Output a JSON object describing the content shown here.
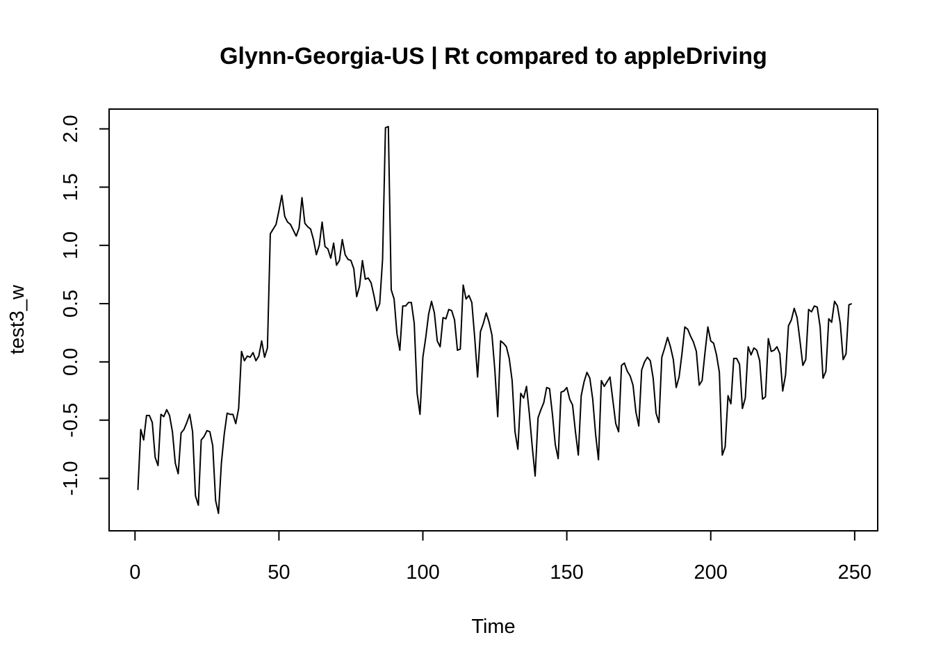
{
  "chart_data": {
    "type": "line",
    "title": "Glynn-Georgia-US | Rt compared to appleDriving",
    "xlabel": "Time",
    "ylabel": "test3_w",
    "xlim": [
      -9,
      258
    ],
    "ylim": [
      -1.45,
      2.17
    ],
    "xticks": [
      0,
      50,
      100,
      150,
      200,
      250
    ],
    "xtick_labels": [
      "0",
      "50",
      "100",
      "150",
      "200",
      "250"
    ],
    "yticks": [
      -1.0,
      -0.5,
      0.0,
      0.5,
      1.0,
      1.5,
      2.0
    ],
    "ytick_labels": [
      "-1.0",
      "-0.5",
      "0.0",
      "0.5",
      "1.0",
      "1.5",
      "2.0"
    ],
    "grid": false,
    "legend": "none",
    "line_color": "#000000",
    "series": [
      {
        "x_start": 1,
        "x_step": 1,
        "values": [
          -1.1,
          -0.58,
          -0.67,
          -0.46,
          -0.46,
          -0.52,
          -0.82,
          -0.89,
          -0.45,
          -0.47,
          -0.41,
          -0.46,
          -0.6,
          -0.87,
          -0.96,
          -0.61,
          -0.58,
          -0.52,
          -0.45,
          -0.6,
          -1.15,
          -1.23,
          -0.67,
          -0.64,
          -0.59,
          -0.6,
          -0.72,
          -1.19,
          -1.3,
          -0.87,
          -0.62,
          -0.44,
          -0.45,
          -0.45,
          -0.53,
          -0.4,
          0.09,
          0.01,
          0.05,
          0.04,
          0.08,
          0.01,
          0.05,
          0.18,
          0.04,
          0.12,
          1.1,
          1.14,
          1.18,
          1.3,
          1.43,
          1.25,
          1.2,
          1.18,
          1.13,
          1.08,
          1.15,
          1.41,
          1.19,
          1.16,
          1.14,
          1.05,
          0.92,
          1.0,
          1.2,
          0.99,
          0.97,
          0.89,
          1.02,
          0.83,
          0.87,
          1.05,
          0.92,
          0.88,
          0.87,
          0.8,
          0.56,
          0.65,
          0.87,
          0.71,
          0.72,
          0.68,
          0.57,
          0.44,
          0.5,
          0.88,
          2.01,
          2.02,
          0.62,
          0.54,
          0.24,
          0.1,
          0.48,
          0.48,
          0.51,
          0.51,
          0.33,
          -0.27,
          -0.45,
          0.04,
          0.21,
          0.41,
          0.52,
          0.42,
          0.18,
          0.13,
          0.38,
          0.37,
          0.45,
          0.44,
          0.36,
          0.1,
          0.11,
          0.66,
          0.54,
          0.57,
          0.51,
          0.21,
          -0.13,
          0.26,
          0.33,
          0.42,
          0.34,
          0.23,
          -0.07,
          -0.47,
          0.18,
          0.16,
          0.13,
          0.03,
          -0.16,
          -0.6,
          -0.75,
          -0.27,
          -0.31,
          -0.21,
          -0.45,
          -0.73,
          -0.98,
          -0.48,
          -0.41,
          -0.35,
          -0.22,
          -0.23,
          -0.45,
          -0.71,
          -0.83,
          -0.26,
          -0.25,
          -0.22,
          -0.32,
          -0.37,
          -0.6,
          -0.8,
          -0.29,
          -0.17,
          -0.09,
          -0.14,
          -0.32,
          -0.62,
          -0.84,
          -0.16,
          -0.21,
          -0.17,
          -0.13,
          -0.33,
          -0.53,
          -0.6,
          -0.03,
          -0.01,
          -0.08,
          -0.12,
          -0.2,
          -0.43,
          -0.55,
          -0.07,
          0.0,
          0.04,
          0.01,
          -0.14,
          -0.44,
          -0.52,
          0.04,
          0.12,
          0.21,
          0.13,
          0.02,
          -0.22,
          -0.13,
          0.07,
          0.3,
          0.28,
          0.22,
          0.17,
          0.09,
          -0.2,
          -0.16,
          0.08,
          0.3,
          0.18,
          0.16,
          0.06,
          -0.09,
          -0.8,
          -0.73,
          -0.29,
          -0.36,
          0.03,
          0.03,
          -0.02,
          -0.4,
          -0.31,
          0.13,
          0.06,
          0.12,
          0.1,
          0.01,
          -0.32,
          -0.3,
          0.2,
          0.09,
          0.1,
          0.13,
          0.07,
          -0.25,
          -0.11,
          0.31,
          0.36,
          0.46,
          0.38,
          0.18,
          -0.03,
          0.02,
          0.45,
          0.43,
          0.48,
          0.47,
          0.3,
          -0.14,
          -0.08,
          0.37,
          0.34,
          0.52,
          0.48,
          0.33,
          0.02,
          0.07,
          0.49,
          0.5
        ]
      }
    ]
  }
}
